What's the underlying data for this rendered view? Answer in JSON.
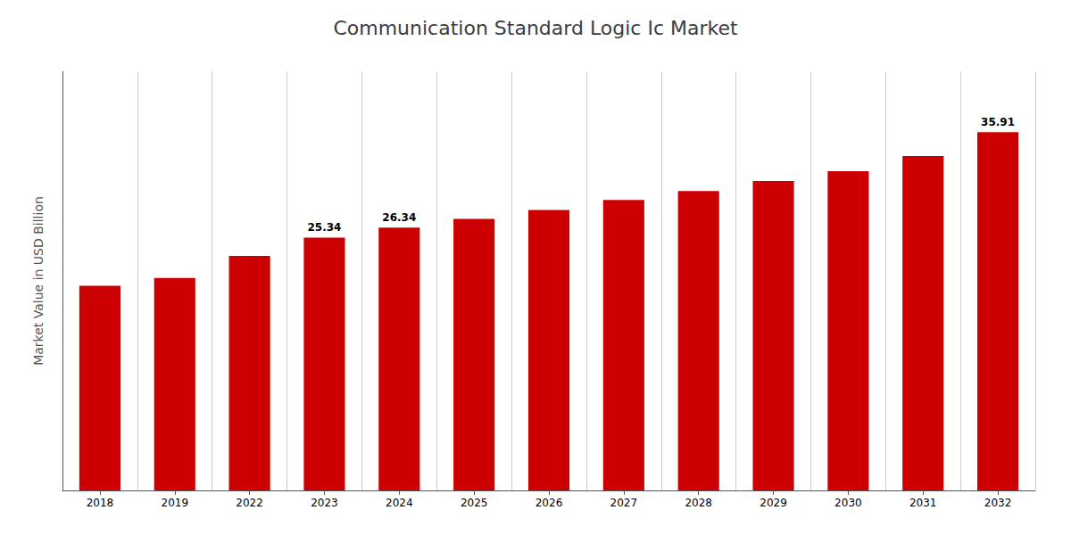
{
  "chart_data": {
    "type": "bar",
    "title": "Communication Standard Logic Ic Market",
    "ylabel": "Market Value in USD Billion",
    "categories": [
      "2018",
      "2019",
      "2022",
      "2023",
      "2024",
      "2025",
      "2026",
      "2027",
      "2028",
      "2029",
      "2030",
      "2031",
      "2032"
    ],
    "values": [
      20.5,
      21.3,
      23.5,
      25.34,
      26.34,
      27.2,
      28.1,
      29.1,
      30.0,
      31.0,
      32.0,
      33.5,
      35.91
    ],
    "value_labels": [
      null,
      null,
      null,
      "25.34",
      "26.34",
      null,
      null,
      null,
      null,
      null,
      null,
      null,
      "35.91"
    ],
    "color": "#cc0000",
    "ylim": [
      0,
      42
    ],
    "yticks": [],
    "tick_labels": "x",
    "grid": true
  }
}
